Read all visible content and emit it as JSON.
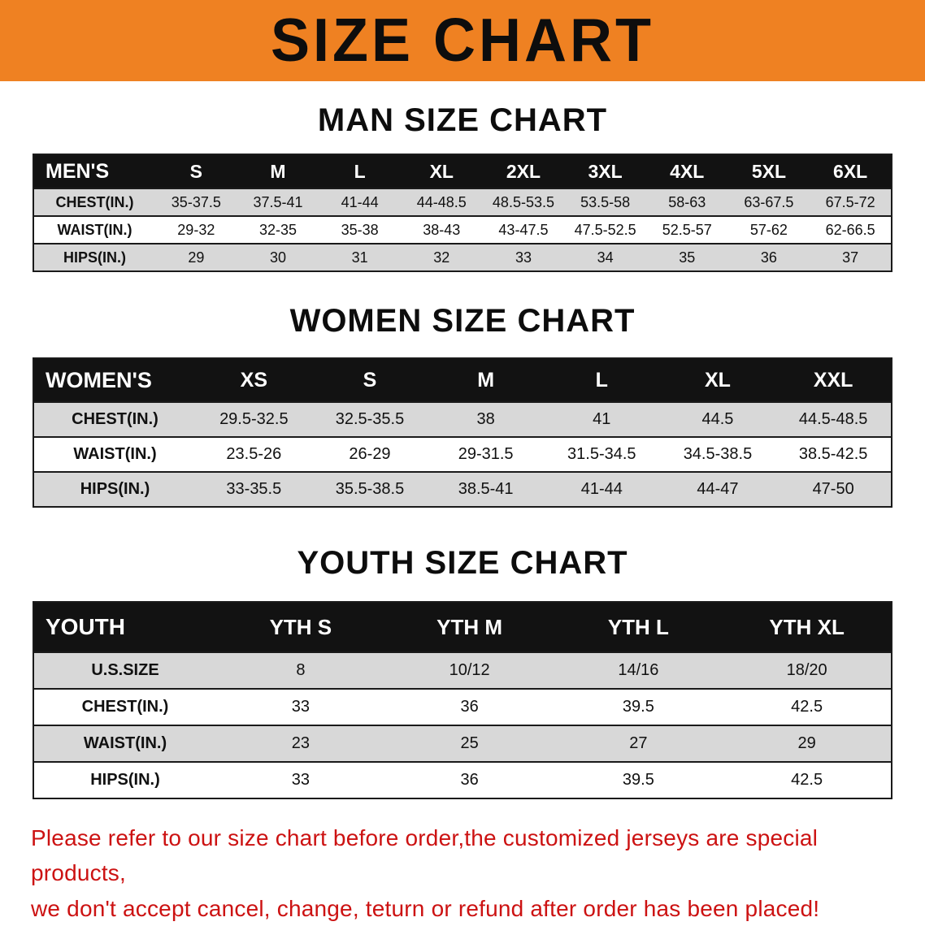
{
  "banner": {
    "title": "SIZE CHART"
  },
  "colors": {
    "banner_bg": "#ef8122",
    "header_bg": "#121212",
    "stripe_bg": "#d8d8d8",
    "disclaimer_red": "#cc1212"
  },
  "sections": [
    {
      "id": "men",
      "heading": "MAN SIZE CHART",
      "table": {
        "header_label": "MEN'S",
        "columns": [
          "S",
          "M",
          "L",
          "XL",
          "2XL",
          "3XL",
          "4XL",
          "5XL",
          "6XL"
        ],
        "rows": [
          {
            "label": "CHEST(IN.)",
            "values": [
              "35-37.5",
              "37.5-41",
              "41-44",
              "44-48.5",
              "48.5-53.5",
              "53.5-58",
              "58-63",
              "63-67.5",
              "67.5-72"
            ]
          },
          {
            "label": "WAIST(IN.)",
            "values": [
              "29-32",
              "32-35",
              "35-38",
              "38-43",
              "43-47.5",
              "47.5-52.5",
              "52.5-57",
              "57-62",
              "62-66.5"
            ]
          },
          {
            "label": "HIPS(IN.)",
            "values": [
              "29",
              "30",
              "31",
              "32",
              "33",
              "34",
              "35",
              "36",
              "37"
            ]
          }
        ]
      }
    },
    {
      "id": "women",
      "heading": "WOMEN SIZE CHART",
      "table": {
        "header_label": "WOMEN'S",
        "columns": [
          "XS",
          "S",
          "M",
          "L",
          "XL",
          "XXL"
        ],
        "rows": [
          {
            "label": "CHEST(IN.)",
            "values": [
              "29.5-32.5",
              "32.5-35.5",
              "38",
              "41",
              "44.5",
              "44.5-48.5"
            ]
          },
          {
            "label": "WAIST(IN.)",
            "values": [
              "23.5-26",
              "26-29",
              "29-31.5",
              "31.5-34.5",
              "34.5-38.5",
              "38.5-42.5"
            ]
          },
          {
            "label": "HIPS(IN.)",
            "values": [
              "33-35.5",
              "35.5-38.5",
              "38.5-41",
              "41-44",
              "44-47",
              "47-50"
            ]
          }
        ]
      }
    },
    {
      "id": "youth",
      "heading": "YOUTH SIZE CHART",
      "table": {
        "header_label": "YOUTH",
        "columns": [
          "YTH S",
          "YTH M",
          "YTH L",
          "YTH XL"
        ],
        "rows": [
          {
            "label": "U.S.SIZE",
            "values": [
              "8",
              "10/12",
              "14/16",
              "18/20"
            ]
          },
          {
            "label": "CHEST(IN.)",
            "values": [
              "33",
              "36",
              "39.5",
              "42.5"
            ]
          },
          {
            "label": "WAIST(IN.)",
            "values": [
              "23",
              "25",
              "27",
              "29"
            ]
          },
          {
            "label": "HIPS(IN.)",
            "values": [
              "33",
              "36",
              "39.5",
              "42.5"
            ]
          }
        ]
      }
    }
  ],
  "disclaimer": {
    "line1": "Please refer to our size chart before order,the customized jerseys are special products,",
    "line2": "we don't accept cancel, change, teturn or refund after order has been placed!"
  }
}
